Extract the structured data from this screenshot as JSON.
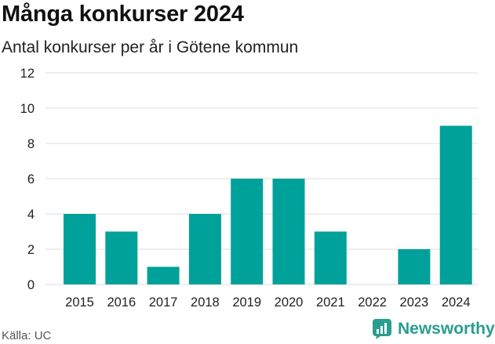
{
  "title": "Många konkurser 2024",
  "subtitle": "Antal konkurser per år i Götene kommun",
  "source": "Källa: UC",
  "brand": {
    "name": "Newsworthy",
    "color": "#2a9d8f",
    "icon": "newsworthy-logo-icon"
  },
  "colors": {
    "bar": "#00a19a",
    "grid": "#dddddd"
  },
  "chart_data": {
    "type": "bar",
    "title": "Många konkurser 2024",
    "subtitle": "Antal konkurser per år i Götene kommun",
    "categories": [
      "2015",
      "2016",
      "2017",
      "2018",
      "2019",
      "2020",
      "2021",
      "2022",
      "2023",
      "2024"
    ],
    "values": [
      4,
      3,
      1,
      4,
      6,
      6,
      3,
      0,
      2,
      9
    ],
    "ylim": [
      0,
      12
    ],
    "yticks": [
      "0",
      "2",
      "4",
      "6",
      "8",
      "10",
      "12"
    ],
    "grid": true,
    "legend": "none"
  }
}
